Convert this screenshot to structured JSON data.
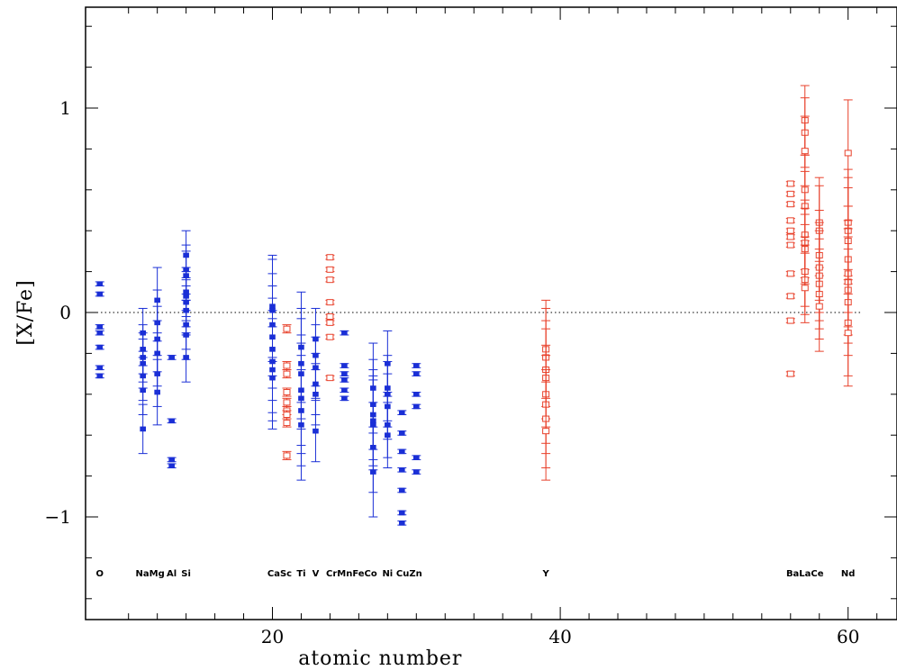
{
  "colors": {
    "light_elements": "#1a2fd6",
    "heavy_elements": "#e8412b",
    "axes": "#000000"
  },
  "chart_data": {
    "type": "scatter",
    "title": "",
    "xlabel": "atomic number",
    "ylabel": "[X/Fe]",
    "xlim": [
      7.8,
      68.5
    ],
    "ylim": [
      -1.5,
      1.5
    ],
    "xticks": [
      20,
      40,
      60
    ],
    "xtick_labels": [
      "20",
      "40",
      "60"
    ],
    "yticks": [
      -1,
      0,
      1
    ],
    "ytick_labels": [
      "−1",
      "0",
      "1"
    ],
    "reference_line": {
      "y": 0,
      "style": "dotted"
    },
    "element_labels": [
      {
        "text": "O",
        "x": 8
      },
      {
        "text": "NaMg",
        "x": 11.5
      },
      {
        "text": "Al",
        "x": 13
      },
      {
        "text": "Si",
        "x": 14
      },
      {
        "text": "CaSc",
        "x": 20.5
      },
      {
        "text": "Ti",
        "x": 22
      },
      {
        "text": "V",
        "x": 23
      },
      {
        "text": "CrMnFeCo",
        "x": 25.5
      },
      {
        "text": "Ni",
        "x": 28
      },
      {
        "text": "CuZn",
        "x": 29.5
      },
      {
        "text": "Y",
        "x": 39
      },
      {
        "text": "BaLaCe",
        "x": 57
      },
      {
        "text": "Nd",
        "x": 60
      }
    ],
    "series": [
      {
        "marker": "filled-square",
        "color": "#1a2fd6",
        "points": [
          {
            "x": 8,
            "y": [
              0.14,
              0.09,
              -0.07,
              -0.1,
              -0.17,
              -0.27,
              -0.31
            ],
            "err": 0.01
          },
          {
            "x": 11,
            "y": [
              -0.1,
              -0.18,
              -0.22,
              -0.25,
              -0.31,
              -0.38,
              -0.57
            ],
            "err": 0.12
          },
          {
            "x": 12,
            "y": [
              0.06,
              -0.05,
              -0.13,
              -0.2,
              -0.3,
              -0.39
            ],
            "err": 0.16
          },
          {
            "x": 13,
            "y": [
              -0.22,
              -0.53,
              -0.72,
              -0.75
            ],
            "err": 0.01
          },
          {
            "x": 14,
            "y": [
              0.28,
              0.21,
              0.18,
              0.1,
              0.08,
              0.05,
              0.01,
              -0.06,
              -0.11,
              -0.22
            ],
            "err": 0.12
          },
          {
            "x": 20,
            "y": [
              0.03,
              0.01,
              -0.06,
              -0.12,
              -0.18,
              -0.24,
              -0.28,
              -0.32
            ],
            "err": 0.25
          },
          {
            "x": 22,
            "y": [
              -0.17,
              -0.25,
              -0.3,
              -0.38,
              -0.42,
              -0.48,
              -0.55
            ],
            "err": 0.27
          },
          {
            "x": 23,
            "y": [
              -0.13,
              -0.21,
              -0.27,
              -0.35,
              -0.4,
              -0.58
            ],
            "err": 0.15
          },
          {
            "x": 25,
            "y": [
              -0.1,
              -0.26,
              -0.3,
              -0.33,
              -0.38,
              -0.42
            ],
            "err": 0.01
          },
          {
            "x": 27,
            "y": [
              -0.37,
              -0.45,
              -0.5,
              -0.53,
              -0.55,
              -0.66,
              -0.78
            ],
            "err": 0.22
          },
          {
            "x": 28,
            "y": [
              -0.25,
              -0.37,
              -0.4,
              -0.46,
              -0.55,
              -0.6
            ],
            "err": 0.16
          },
          {
            "x": 29,
            "y": [
              -0.49,
              -0.59,
              -0.68,
              -0.77,
              -0.87,
              -0.98,
              -1.03
            ],
            "err": 0.01
          },
          {
            "x": 30,
            "y": [
              -0.26,
              -0.3,
              -0.4,
              -0.46,
              -0.71,
              -0.78
            ],
            "err": 0.01
          }
        ]
      },
      {
        "marker": "open-square",
        "color": "#e8412b",
        "points": [
          {
            "x": 21,
            "y": [
              -0.08,
              -0.26,
              -0.3,
              -0.39,
              -0.44,
              -0.48,
              -0.5,
              -0.54,
              -0.7
            ],
            "err": 0.02
          },
          {
            "x": 24,
            "y": [
              0.27,
              0.21,
              0.16,
              0.05,
              -0.02,
              -0.05,
              -0.12,
              -0.32
            ],
            "err": 0.01
          },
          {
            "x": 39,
            "y": [
              -0.18,
              -0.22,
              -0.28,
              -0.32,
              -0.4,
              -0.45,
              -0.52,
              -0.58
            ],
            "err": 0.24
          },
          {
            "x": 56,
            "y": [
              0.63,
              0.58,
              0.53,
              0.45,
              0.4,
              0.37,
              0.33,
              0.19,
              0.08,
              -0.04,
              -0.3
            ],
            "err": 0.01
          },
          {
            "x": 57,
            "y": [
              0.94,
              0.88,
              0.79,
              0.6,
              0.52,
              0.38,
              0.34,
              0.31,
              0.2,
              0.16,
              0.12
            ],
            "err": 0.17
          },
          {
            "x": 58,
            "y": [
              0.44,
              0.4,
              0.28,
              0.22,
              0.18,
              0.14,
              0.09,
              0.03
            ],
            "err": 0.22
          },
          {
            "x": 60,
            "y": [
              0.78,
              0.44,
              0.4,
              0.35,
              0.26,
              0.19,
              0.15,
              0.11,
              0.05,
              -0.05,
              -0.1
            ],
            "err": 0.26
          }
        ]
      }
    ]
  }
}
